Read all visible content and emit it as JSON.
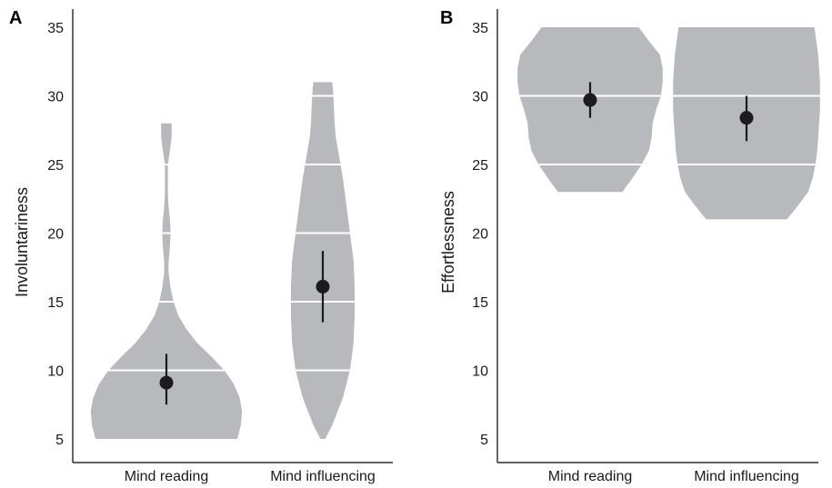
{
  "colors": {
    "violin": "#b8b9bd",
    "quartile_line": "#ffffff",
    "point": "#1c1c1e",
    "axis": "#000000"
  },
  "chart_data": [
    {
      "panel": "A",
      "type": "violin",
      "ylabel": "Involuntariness",
      "ylim": [
        5,
        35
      ],
      "yticks": [
        5,
        10,
        15,
        20,
        25,
        30,
        35
      ],
      "categories": [
        "Mind reading",
        "Mind influencing"
      ],
      "series": [
        {
          "category": "Mind reading",
          "min": 5,
          "max": 28,
          "mean": 9.1,
          "ci": [
            7.5,
            11.2
          ],
          "quartile_lines": [
            10,
            15,
            20,
            25
          ],
          "density": [
            [
              5,
              0.6
            ],
            [
              6,
              0.63
            ],
            [
              7,
              0.64
            ],
            [
              8,
              0.62
            ],
            [
              9,
              0.57
            ],
            [
              10,
              0.49
            ],
            [
              11,
              0.38
            ],
            [
              12,
              0.26
            ],
            [
              13,
              0.17
            ],
            [
              14,
              0.1
            ],
            [
              15,
              0.06
            ],
            [
              16,
              0.035
            ],
            [
              17,
              0.02
            ],
            [
              17.5,
              0.018
            ],
            [
              18,
              0.02
            ],
            [
              19,
              0.03
            ],
            [
              20,
              0.035
            ],
            [
              21,
              0.03
            ],
            [
              22,
              0.018
            ],
            [
              23,
              0.012
            ],
            [
              24,
              0.012
            ],
            [
              25,
              0.012
            ],
            [
              26,
              0.03
            ],
            [
              27,
              0.045
            ],
            [
              28,
              0.045
            ]
          ]
        },
        {
          "category": "Mind influencing",
          "min": 5,
          "max": 31,
          "mean": 16.1,
          "ci": [
            13.5,
            18.7
          ],
          "quartile_lines": [
            10,
            15,
            20,
            25,
            30
          ],
          "density": [
            [
              5,
              0.02
            ],
            [
              6,
              0.08
            ],
            [
              8,
              0.17
            ],
            [
              10,
              0.23
            ],
            [
              12,
              0.26
            ],
            [
              14,
              0.27
            ],
            [
              16,
              0.27
            ],
            [
              18,
              0.26
            ],
            [
              20,
              0.23
            ],
            [
              22,
              0.2
            ],
            [
              24,
              0.17
            ],
            [
              25,
              0.15
            ],
            [
              26,
              0.13
            ],
            [
              27,
              0.11
            ],
            [
              28,
              0.1
            ],
            [
              29,
              0.095
            ],
            [
              30,
              0.09
            ],
            [
              30.5,
              0.085
            ],
            [
              31,
              0.08
            ]
          ]
        }
      ]
    },
    {
      "panel": "B",
      "type": "violin",
      "ylabel": "Effortlessness",
      "ylim": [
        5,
        35
      ],
      "yticks": [
        5,
        10,
        15,
        20,
        25,
        30,
        35
      ],
      "categories": [
        "Mind reading",
        "Mind influencing"
      ],
      "series": [
        {
          "category": "Mind reading",
          "min": 23,
          "max": 35,
          "mean": 29.7,
          "ci": [
            28.4,
            31.0
          ],
          "quartile_lines": [
            25,
            30
          ],
          "density": [
            [
              23,
              0.35
            ],
            [
              24,
              0.46
            ],
            [
              25,
              0.56
            ],
            [
              26,
              0.64
            ],
            [
              27,
              0.67
            ],
            [
              28,
              0.68
            ],
            [
              29,
              0.72
            ],
            [
              30,
              0.77
            ],
            [
              31,
              0.79
            ],
            [
              32,
              0.79
            ],
            [
              33,
              0.76
            ],
            [
              34,
              0.64
            ],
            [
              35,
              0.53
            ]
          ]
        },
        {
          "category": "Mind influencing",
          "min": 21,
          "max": 35,
          "mean": 28.4,
          "ci": [
            26.7,
            30.0
          ],
          "quartile_lines": [
            25,
            30
          ],
          "density": [
            [
              21,
              0.44
            ],
            [
              22,
              0.56
            ],
            [
              23,
              0.67
            ],
            [
              24,
              0.72
            ],
            [
              25,
              0.75
            ],
            [
              26,
              0.77
            ],
            [
              27,
              0.78
            ],
            [
              28,
              0.79
            ],
            [
              29,
              0.8
            ],
            [
              30,
              0.8
            ],
            [
              31,
              0.8
            ],
            [
              32,
              0.79
            ],
            [
              33,
              0.78
            ],
            [
              34,
              0.76
            ],
            [
              35,
              0.74
            ]
          ]
        }
      ]
    }
  ]
}
